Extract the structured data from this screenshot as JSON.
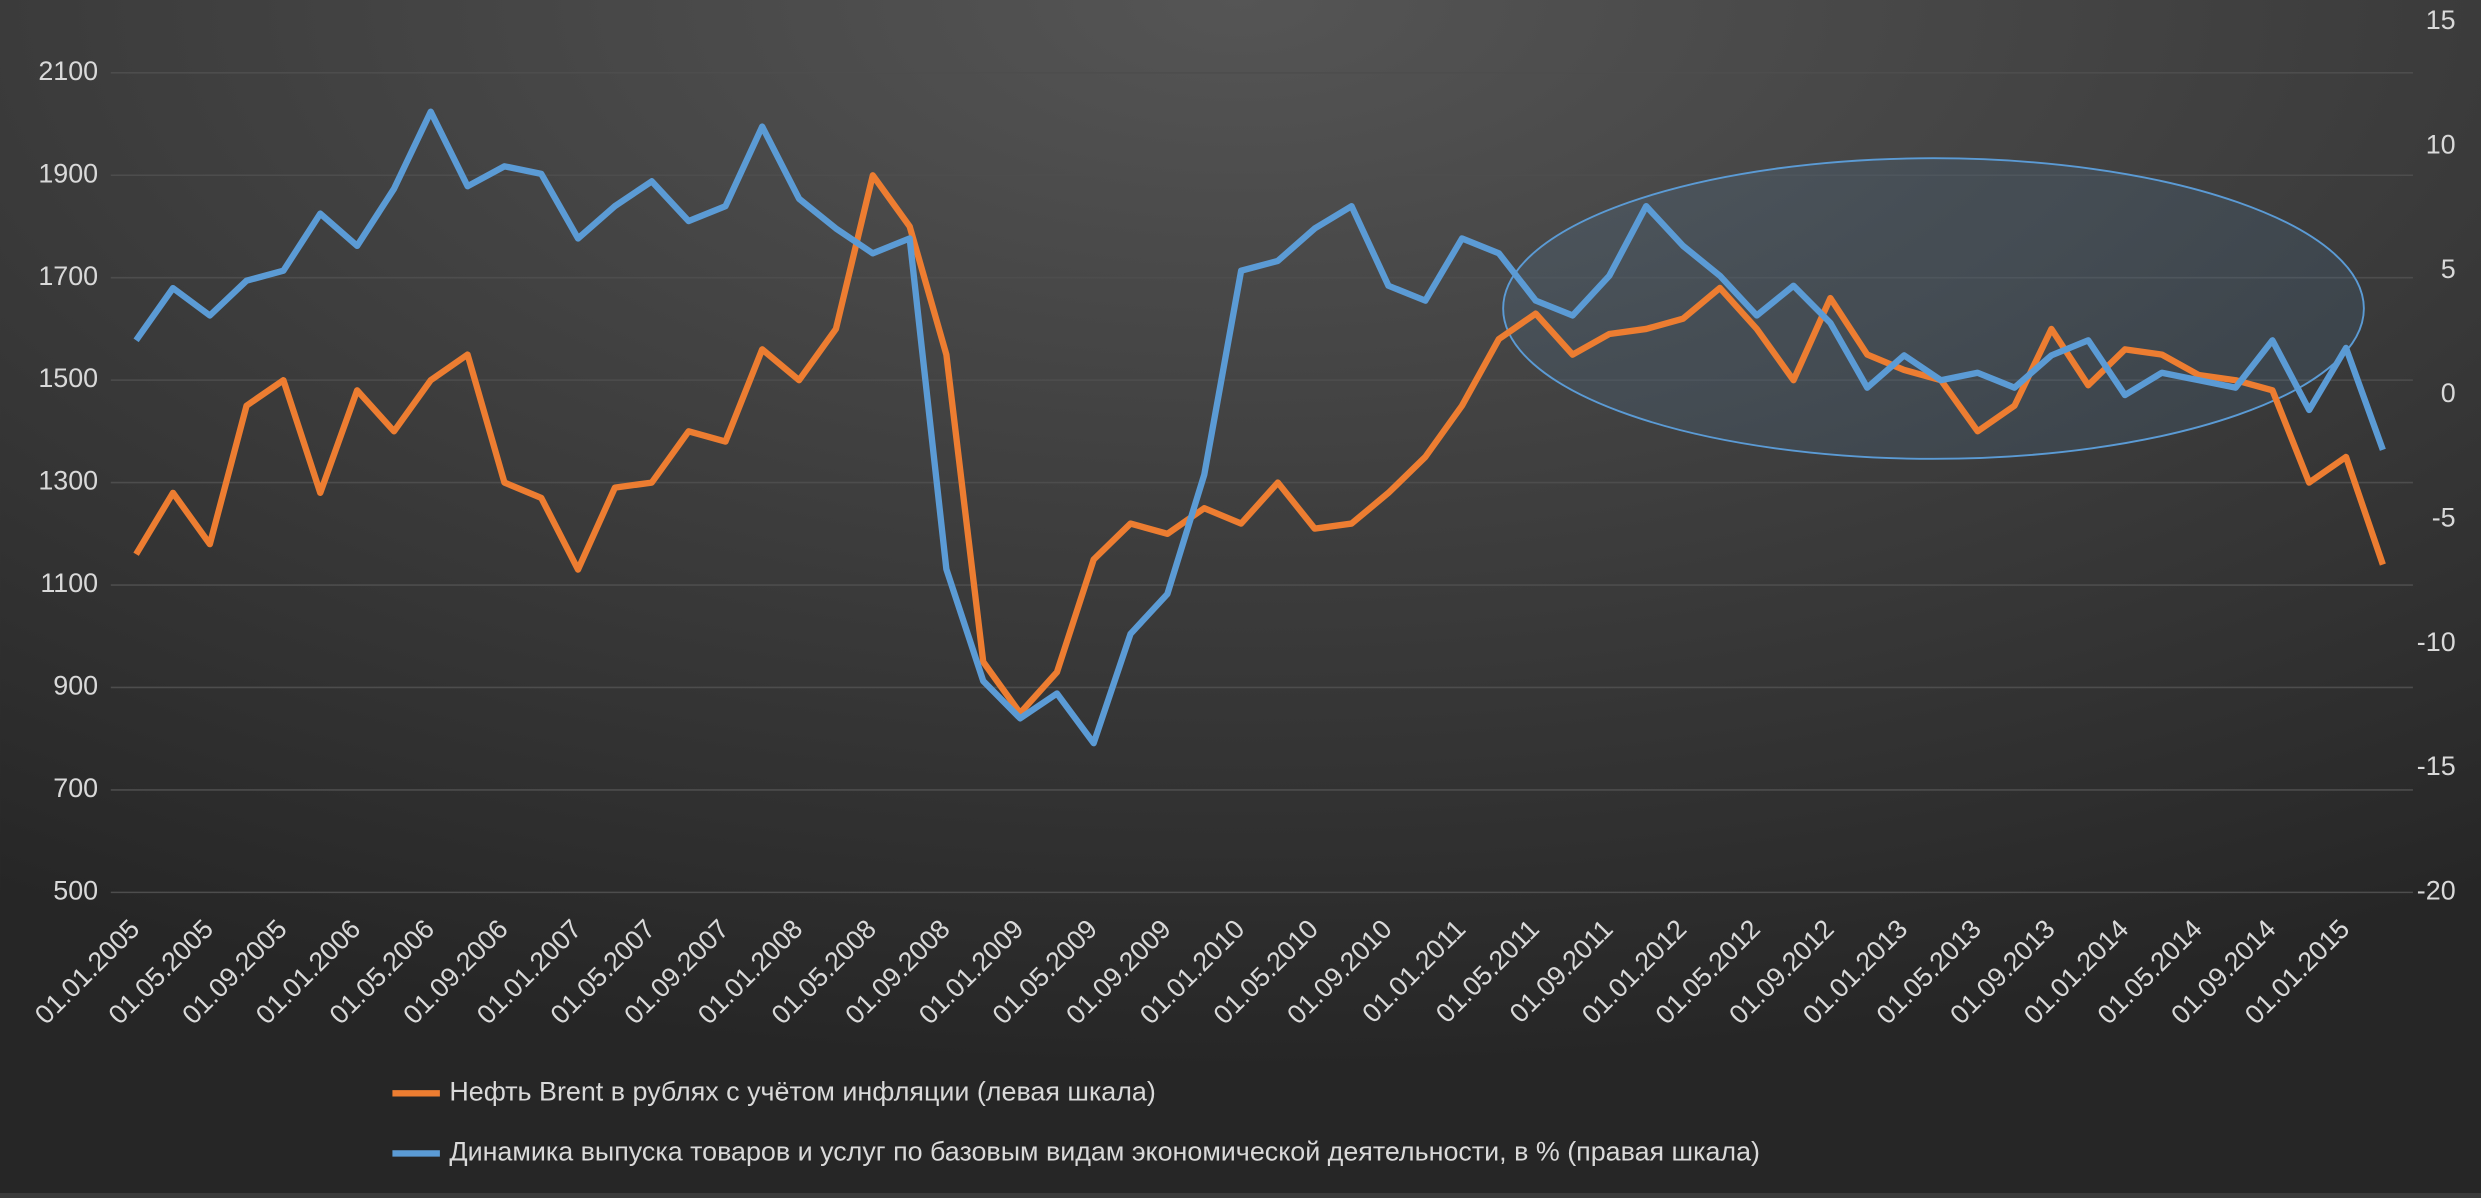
{
  "chart_data": {
    "type": "line",
    "categories": [
      "01.01.2005",
      null,
      "01.05.2005",
      null,
      "01.09.2005",
      null,
      "01.01.2006",
      null,
      "01.05.2006",
      null,
      "01.09.2006",
      null,
      "01.01.2007",
      null,
      "01.05.2007",
      null,
      "01.09.2007",
      null,
      "01.01.2008",
      null,
      "01.05.2008",
      null,
      "01.09.2008",
      null,
      "01.01.2009",
      null,
      "01.05.2009",
      null,
      "01.09.2009",
      null,
      "01.01.2010",
      null,
      "01.05.2010",
      null,
      "01.09.2010",
      null,
      "01.01.2011",
      null,
      "01.05.2011",
      null,
      "01.09.2011",
      null,
      "01.01.2012",
      null,
      "01.05.2012",
      null,
      "01.09.2012",
      null,
      "01.01.2013",
      null,
      "01.05.2013",
      null,
      "01.09.2013",
      null,
      "01.01.2014",
      null,
      "01.05.2014",
      null,
      "01.09.2014",
      null,
      "01.01.2015",
      null
    ],
    "series": [
      {
        "name": "Нефть Brent  в рублях с учётом инфляции (левая шкала)",
        "color": "#ed7d31",
        "values": [
          1160,
          1280,
          1180,
          1450,
          1500,
          1280,
          1480,
          1400,
          1500,
          1550,
          1300,
          1270,
          1130,
          1290,
          1300,
          1400,
          1380,
          1560,
          1500,
          1600,
          1900,
          1800,
          1550,
          950,
          850,
          930,
          1150,
          1220,
          1200,
          1250,
          1220,
          1300,
          1210,
          1220,
          1280,
          1350,
          1450,
          1580,
          1630,
          1550,
          1590,
          1600,
          1620,
          1680,
          1600,
          1500,
          1660,
          1550,
          1520,
          1500,
          1400,
          1450,
          1600,
          1490,
          1560,
          1550,
          1510,
          1500,
          1480,
          1300,
          1350,
          1140
        ]
      },
      {
        "name": "Динамика выпуска товаров и услуг по базовым видам экономической деятельности, в % (правая шкала)",
        "color": "#5b9bd5",
        "axis": "y2",
        "values": [
          2.2,
          4.3,
          3.2,
          4.6,
          5,
          7.3,
          6,
          8.3,
          11.4,
          8.4,
          9.2,
          8.9,
          6.3,
          7.6,
          8.6,
          7,
          7.6,
          10.8,
          7.9,
          6.7,
          5.7,
          6.3,
          -7,
          -11.5,
          -13,
          -12,
          -14,
          -9.6,
          -8,
          -3.2,
          5,
          5.4,
          6.7,
          7.6,
          4.4,
          3.8,
          6.3,
          5.7,
          3.8,
          3.2,
          4.8,
          7.6,
          6,
          4.8,
          3.2,
          4.4,
          2.9,
          0.3,
          1.6,
          0.6,
          0.9,
          0.3,
          1.6,
          2.2,
          0,
          0.9,
          0.6,
          0.3,
          2.2,
          -0.6,
          1.9,
          -2.2
        ]
      }
    ],
    "ylim": [
      500,
      2100
    ],
    "yticks": [
      500,
      700,
      900,
      1100,
      1300,
      1500,
      1700,
      1900,
      2100
    ],
    "y2lim": [
      -20,
      15
    ],
    "y2ticks": [
      -20,
      -15,
      -10,
      -5,
      0,
      5,
      10,
      15
    ],
    "grid": true,
    "legend": "bottom"
  }
}
